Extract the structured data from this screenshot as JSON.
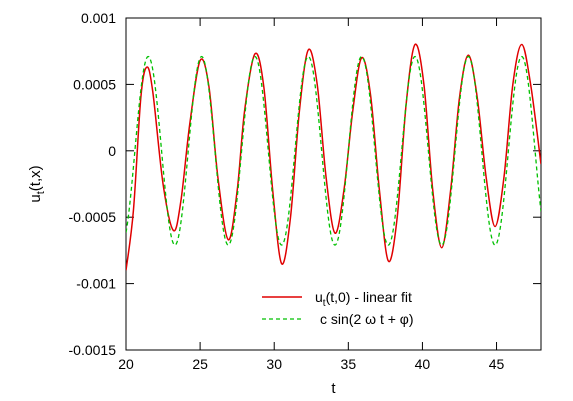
{
  "chart_data": {
    "type": "line",
    "title": "",
    "xlabel": "t",
    "ylabel_main": "u",
    "ylabel_sub": "t",
    "ylabel_rest": "(t,x)",
    "xlim": [
      20,
      48
    ],
    "ylim": [
      -0.0015,
      0.001
    ],
    "xticks": [
      {
        "value": 20,
        "label": "20"
      },
      {
        "value": 25,
        "label": "25"
      },
      {
        "value": 30,
        "label": "30"
      },
      {
        "value": 35,
        "label": "35"
      },
      {
        "value": 40,
        "label": "40"
      },
      {
        "value": 45,
        "label": "45"
      }
    ],
    "yticks": [
      {
        "value": 0.001,
        "label": "0.001"
      },
      {
        "value": 0.0005,
        "label": "0.0005"
      },
      {
        "value": 0,
        "label": "0"
      },
      {
        "value": -0.0005,
        "label": "-0.0005"
      },
      {
        "value": -0.001,
        "label": "-0.001"
      },
      {
        "value": -0.0015,
        "label": "-0.0015"
      }
    ],
    "grid": false,
    "legend_position": "bottom-right",
    "series": [
      {
        "legend_main": "u",
        "legend_sub": "t",
        "legend_rest": "(t,0) - linear fit",
        "color": "#e00000",
        "dash": "solid",
        "points": [
          [
            20.0,
            -0.0009
          ],
          [
            20.5,
            -0.00045
          ],
          [
            21.0,
            0.0004
          ],
          [
            21.4,
            0.00063
          ],
          [
            21.8,
            0.00045
          ],
          [
            22.5,
            -0.00025
          ],
          [
            23.2,
            -0.0006
          ],
          [
            23.7,
            -0.00038
          ],
          [
            24.3,
            0.0002
          ],
          [
            25.0,
            0.00068
          ],
          [
            25.6,
            0.00048
          ],
          [
            26.2,
            -0.0002
          ],
          [
            26.9,
            -0.00067
          ],
          [
            27.5,
            -0.0003
          ],
          [
            28.0,
            0.0003
          ],
          [
            28.7,
            0.00073
          ],
          [
            29.3,
            0.00048
          ],
          [
            29.9,
            -0.0003
          ],
          [
            30.5,
            -0.00085
          ],
          [
            31.1,
            -0.0005
          ],
          [
            31.7,
            0.0003
          ],
          [
            32.3,
            0.00076
          ],
          [
            32.9,
            0.0005
          ],
          [
            33.5,
            -0.0002
          ],
          [
            34.1,
            -0.00062
          ],
          [
            34.7,
            -0.0003
          ],
          [
            35.3,
            0.0003
          ],
          [
            35.9,
            0.0007
          ],
          [
            36.5,
            0.00042
          ],
          [
            37.1,
            -0.0003
          ],
          [
            37.7,
            -0.00083
          ],
          [
            38.3,
            -0.0005
          ],
          [
            38.9,
            0.00035
          ],
          [
            39.5,
            0.0008
          ],
          [
            40.1,
            0.0005
          ],
          [
            40.7,
            -0.0003
          ],
          [
            41.3,
            -0.00073
          ],
          [
            41.9,
            -0.0003
          ],
          [
            42.5,
            0.0004
          ],
          [
            43.1,
            0.00072
          ],
          [
            43.7,
            0.0004
          ],
          [
            44.3,
            -0.0002
          ],
          [
            44.9,
            -0.00057
          ],
          [
            45.5,
            -0.0002
          ],
          [
            46.1,
            0.0005
          ],
          [
            46.7,
            0.0008
          ],
          [
            47.3,
            0.0005
          ],
          [
            48.0,
            -0.0001
          ]
        ]
      },
      {
        "legend_main": "c sin(2 ω t + φ)",
        "color": "#00c000",
        "dash": "4,3",
        "amplitude": 0.00071,
        "period": 3.6,
        "peak_t": 21.5
      }
    ]
  }
}
